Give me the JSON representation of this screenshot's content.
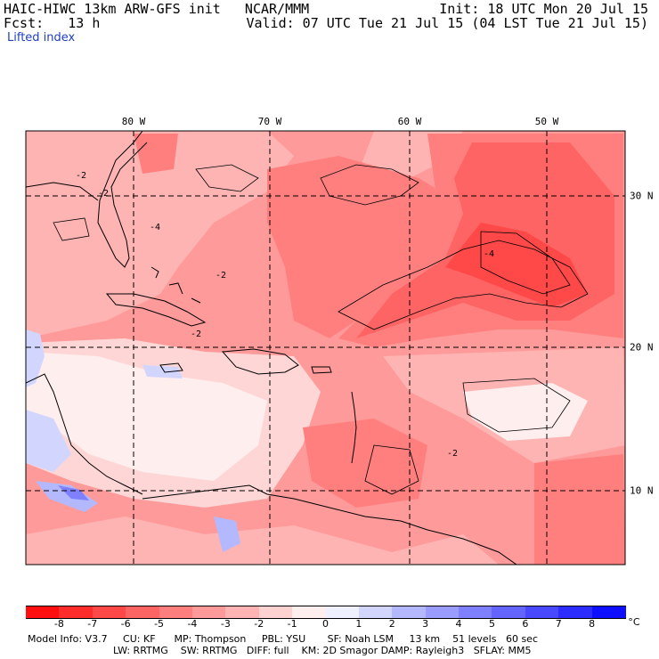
{
  "header": {
    "line1_left": "HAIC-HIWC 13km ARW-GFS init   NCAR/MMM",
    "line1_right": "Init: 18 UTC Mon 20 Jul 15",
    "line2_left": "Fcst:   13 h",
    "line2_right": "Valid: 07 UTC Tue 21 Jul 15 (04 LST Tue 21 Jul 15)",
    "field": "Lifted index"
  },
  "map": {
    "lon_labels": [
      "80 W",
      "70 W",
      "60 W",
      "50 W"
    ],
    "lat_labels": [
      "30 N",
      "20 N",
      "10 N"
    ],
    "contour_labels": [
      "-2",
      "-2",
      "-4",
      "-2",
      "-2",
      "-4",
      "-2"
    ]
  },
  "colorbar": {
    "colors": [
      "#ff0f0f",
      "#ff2c2c",
      "#ff4848",
      "#ff6464",
      "#ff7f7f",
      "#ff9a9a",
      "#ffb4b4",
      "#ffd2d2",
      "#ffeeee",
      "#eef0ff",
      "#d2d6ff",
      "#b4b9ff",
      "#9a9dff",
      "#7f80ff",
      "#6464ff",
      "#4848ff",
      "#2c2cff",
      "#0f0fff"
    ],
    "tick_labels": [
      "-8",
      "-7",
      "-6",
      "-5",
      "-4",
      "-3",
      "-2",
      "-1",
      "0",
      "1",
      "2",
      "3",
      "4",
      "5",
      "6",
      "7",
      "8"
    ],
    "unit": "°C"
  },
  "info": {
    "line1": "Model Info: V3.7     CU: KF      MP: Thompson     PBL: YSU       SF: Noah LSM     13 km    51 levels   60 sec",
    "line2": "LW: RRTMG    SW: RRTMG   DIFF: full    KM: 2D Smagor DAMP: Rayleigh3   SFLAY: MM5"
  },
  "style": {
    "land_outline": "#000000",
    "grid": "#000000"
  }
}
